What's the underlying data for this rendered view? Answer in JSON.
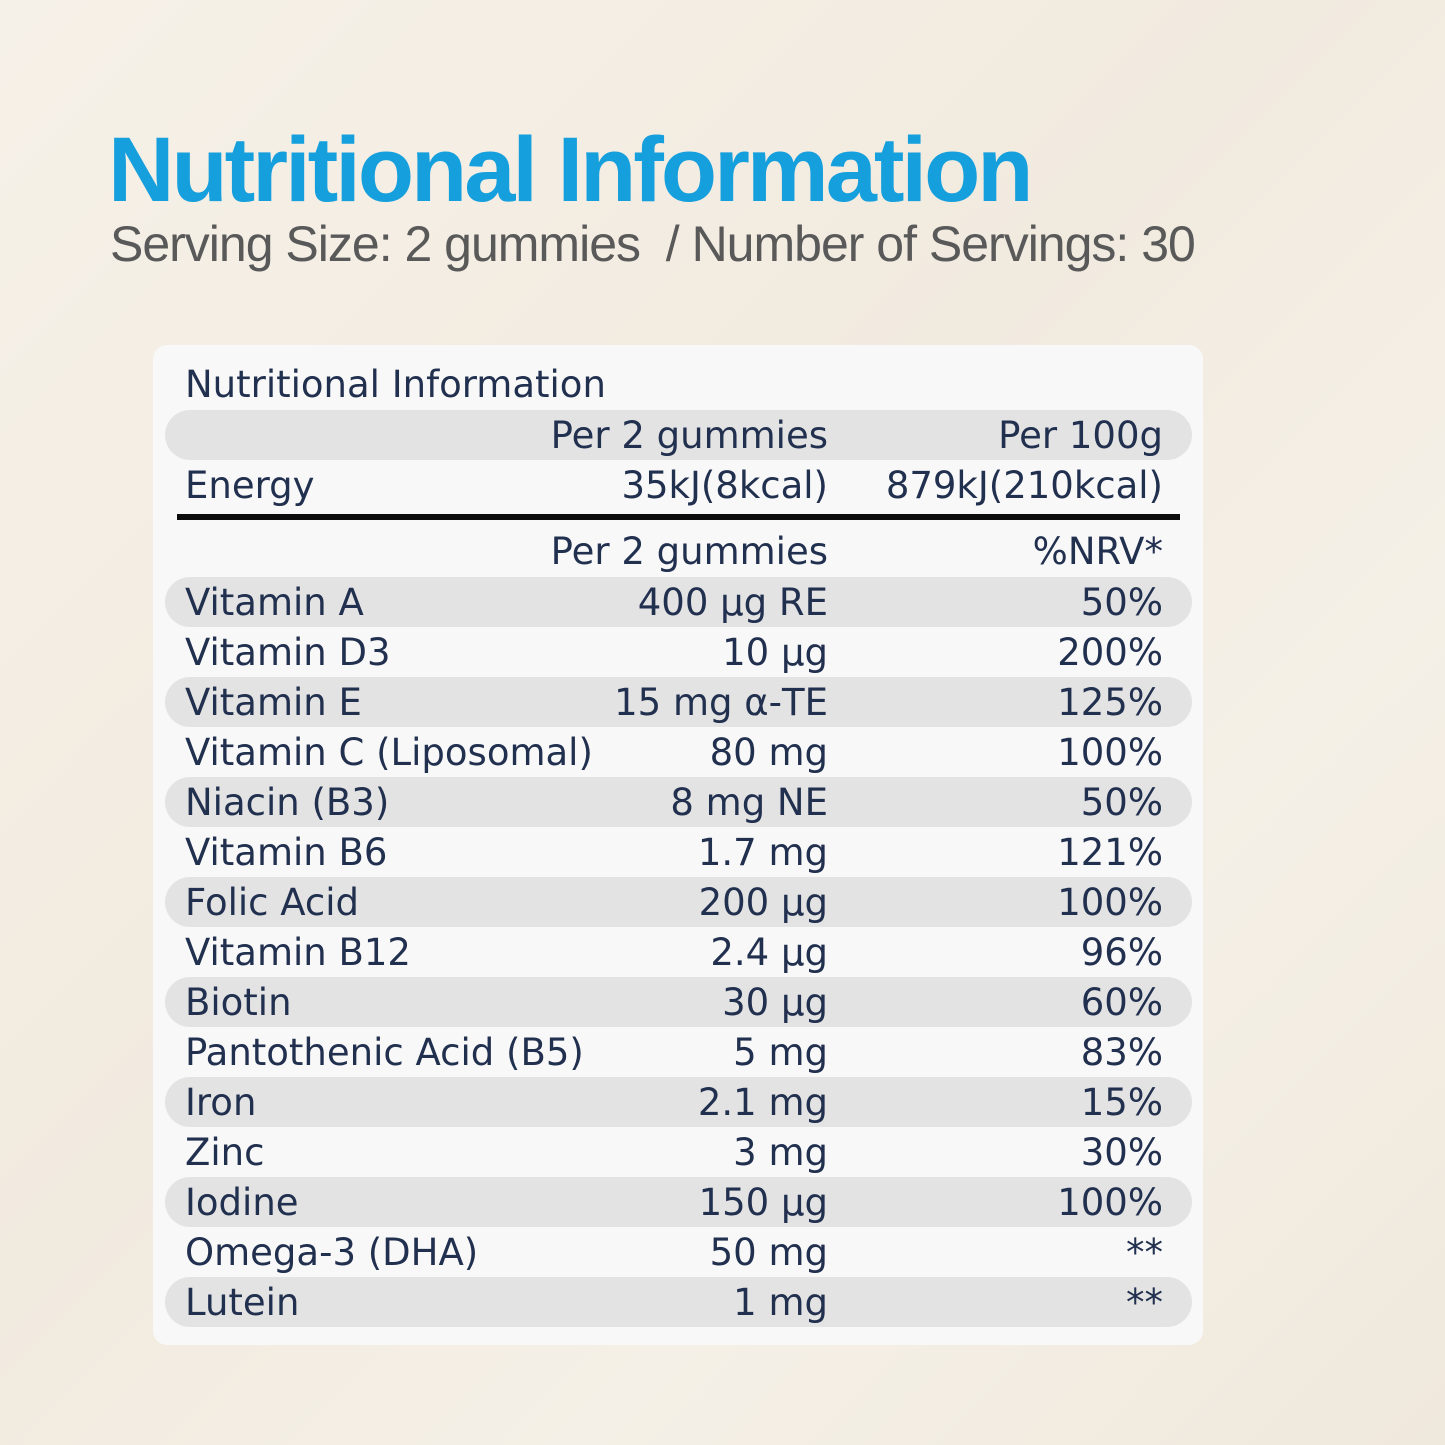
{
  "header": {
    "title": "Nutritional Information",
    "subtitle": "Serving Size: 2 gummies  / Number of Servings: 30"
  },
  "table": {
    "title": "Nutritional Information",
    "energy_header": [
      "Per 2 gummies",
      "Per 100g"
    ],
    "energy_row": [
      "Energy",
      "35kJ(8kcal)",
      "879kJ(210kcal)"
    ],
    "nutrient_header": [
      "Per 2 gummies",
      "%NRV*"
    ],
    "rows": [
      [
        "Vitamin A",
        "400 µg RE",
        "50%"
      ],
      [
        "Vitamin D3",
        "10 µg",
        "200%"
      ],
      [
        "Vitamin E",
        "15 mg α-TE",
        "125%"
      ],
      [
        "Vitamin C (Liposomal)",
        "80 mg",
        "100%"
      ],
      [
        "Niacin (B3)",
        "8 mg NE",
        "50%"
      ],
      [
        "Vitamin B6",
        "1.7 mg",
        "121%"
      ],
      [
        "Folic Acid",
        "200 µg",
        "100%"
      ],
      [
        "Vitamin B12",
        "2.4 µg",
        "96%"
      ],
      [
        "Biotin",
        "30 µg",
        "60%"
      ],
      [
        "Pantothenic Acid (B5)",
        "5 mg",
        "83%"
      ],
      [
        "Iron",
        "2.1 mg",
        "15%"
      ],
      [
        "Zinc",
        "3 mg",
        "30%"
      ],
      [
        "Iodine",
        "150 µg",
        "100%"
      ],
      [
        "Omega-3 (DHA)",
        "50 mg",
        "**"
      ],
      [
        "Lutein",
        "1 mg",
        "**"
      ]
    ]
  }
}
